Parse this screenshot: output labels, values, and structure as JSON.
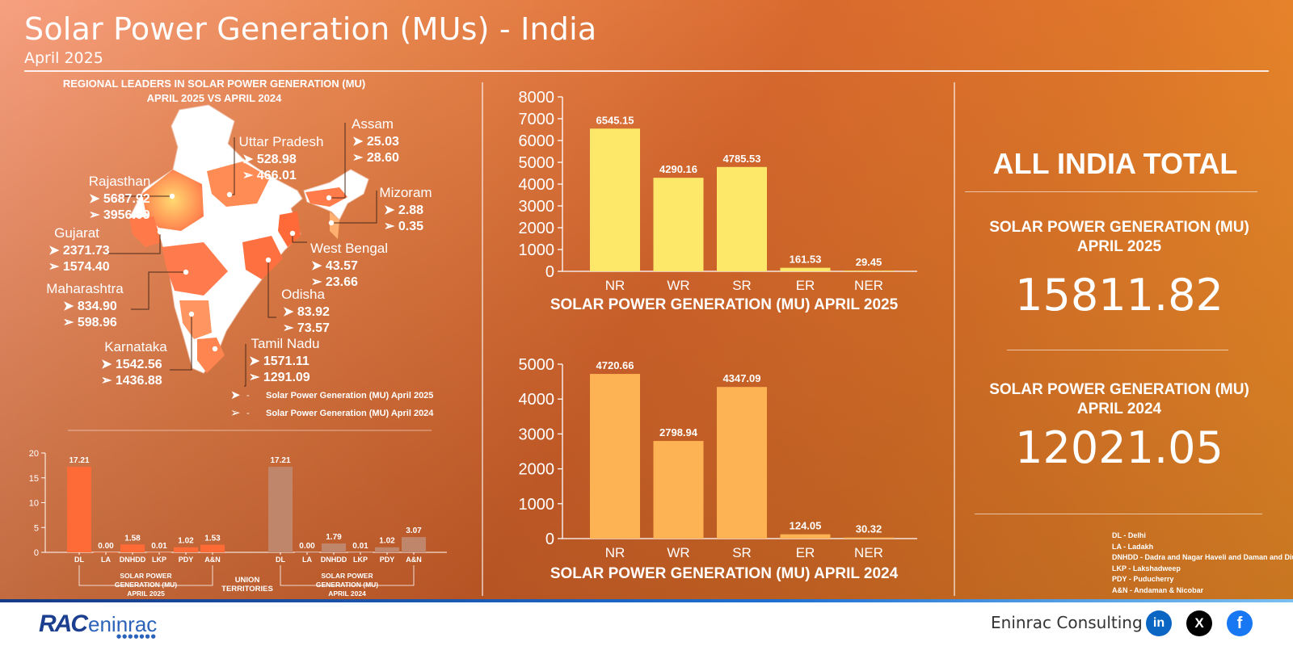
{
  "title": "Solar Power Generation (MUs) - India",
  "subtitle": "April 2025",
  "map": {
    "title_line1": "REGIONAL LEADERS IN SOLAR POWER GENERATION (MU)",
    "title_line2": "APRIL 2025 VS APRIL 2024",
    "states": [
      {
        "name": "Rajasthan",
        "v2025": "5687.92",
        "v2024": "3956.09"
      },
      {
        "name": "Uttar Pradesh",
        "v2025": "528.98",
        "v2024": "466.01"
      },
      {
        "name": "Assam",
        "v2025": "25.03",
        "v2024": "28.60"
      },
      {
        "name": "Mizoram",
        "v2025": "2.88",
        "v2024": "0.35"
      },
      {
        "name": "Gujarat",
        "v2025": "2371.73",
        "v2024": "1574.40"
      },
      {
        "name": "West Bengal",
        "v2025": "43.57",
        "v2024": "23.66"
      },
      {
        "name": "Maharashtra",
        "v2025": "834.90",
        "v2024": "598.96"
      },
      {
        "name": "Odisha",
        "v2025": "83.92",
        "v2024": "73.57"
      },
      {
        "name": "Karnataka",
        "v2025": "1542.56",
        "v2024": "1436.88"
      },
      {
        "name": "Tamil Nadu",
        "v2025": "1571.11",
        "v2024": "1291.09"
      }
    ],
    "legend": [
      {
        "symbol": "➤",
        "text": "Solar Power Generation (MU) April 2025"
      },
      {
        "symbol": "➢",
        "text": "Solar Power Generation (MU) April 2024"
      }
    ],
    "legend_dash": "-"
  },
  "chart_data": [
    {
      "type": "bar",
      "title": "SOLAR POWER GENERATION (MU) APRIL 2025",
      "categories": [
        "NR",
        "WR",
        "SR",
        "ER",
        "NER"
      ],
      "values": [
        6545.15,
        4290.16,
        4785.53,
        161.53,
        29.45
      ],
      "labels": [
        "6545.15",
        "4290.16",
        "4785.53",
        "161.53",
        "29.45"
      ],
      "ylim": [
        0,
        8000
      ],
      "yticks": [
        0,
        1000,
        2000,
        3000,
        4000,
        5000,
        6000,
        7000,
        8000
      ],
      "color": "#fde86a"
    },
    {
      "type": "bar",
      "title": "SOLAR POWER GENERATION (MU) APRIL 2024",
      "categories": [
        "NR",
        "WR",
        "SR",
        "ER",
        "NER"
      ],
      "values": [
        4720.66,
        2798.94,
        4347.09,
        124.05,
        30.32
      ],
      "labels": [
        "4720.66",
        "2798.94",
        "4347.09",
        "124.05",
        "30.32"
      ],
      "ylim": [
        0,
        5000
      ],
      "yticks": [
        0,
        1000,
        2000,
        3000,
        4000,
        5000
      ],
      "color": "#fdb253"
    },
    {
      "type": "bar",
      "title": "UNION TERRITORIES",
      "ylim": [
        0,
        20
      ],
      "yticks": [
        0,
        5,
        10,
        15,
        20
      ],
      "series": [
        {
          "name": "SOLAR POWER GENERATION (MU) APRIL 2025",
          "categories": [
            "DL",
            "LA",
            "DNHDD",
            "LKP",
            "PDY",
            "A&N"
          ],
          "values": [
            17.21,
            0.0,
            1.58,
            0.01,
            1.02,
            1.53
          ],
          "labels": [
            "17.21",
            "0.00",
            "1.58",
            "0.01",
            "1.02",
            "1.53"
          ],
          "color": "#ff6b36"
        },
        {
          "name": "SOLAR POWER GENERATION (MU) APRIL 2024",
          "categories": [
            "DL",
            "LA",
            "DNHDD",
            "LKP",
            "PDY",
            "A&N"
          ],
          "values": [
            17.21,
            0.0,
            1.79,
            0.01,
            1.02,
            3.07
          ],
          "labels": [
            "17.21",
            "0.00",
            "1.79",
            "0.01",
            "1.02",
            "3.07"
          ],
          "color": "#c0866b"
        }
      ],
      "group_label_lines": [
        [
          "SOLAR POWER",
          "GENERATION (MU)",
          "APRIL 2025"
        ],
        [
          "SOLAR POWER",
          "GENERATION (MU)",
          "APRIL 2024"
        ]
      ],
      "middle_label_lines": [
        "UNION",
        "TERRITORIES"
      ]
    }
  ],
  "totals": {
    "heading": "ALL INDIA TOTAL",
    "label_2025_line1": "SOLAR POWER GENERATION (MU)",
    "label_2025_line2": "APRIL 2025",
    "value_2025": "15811.82",
    "label_2024_line1": "SOLAR POWER GENERATION (MU)",
    "label_2024_line2": "APRIL 2024",
    "value_2024": "12021.05"
  },
  "abbreviations": [
    "DL - Delhi",
    "LA - Ladakh",
    "DNHDD - Dadra and Nagar Haveli and Daman and Diu",
    "LKP - Lakshadweep",
    "PDY - Puducherry",
    "A&N - Andaman & Nicobar"
  ],
  "footer": {
    "logo_mark": "RAC",
    "logo_name": "eninrac",
    "logo_dots": "●●●●●●●",
    "company": "Eninrac Consulting",
    "social": [
      {
        "icon": "linkedin-icon",
        "glyph": "in",
        "color": "#0a66c2"
      },
      {
        "icon": "x-icon",
        "glyph": "X",
        "color": "#000000"
      },
      {
        "icon": "facebook-icon",
        "glyph": "f",
        "color": "#1877f2"
      }
    ]
  }
}
